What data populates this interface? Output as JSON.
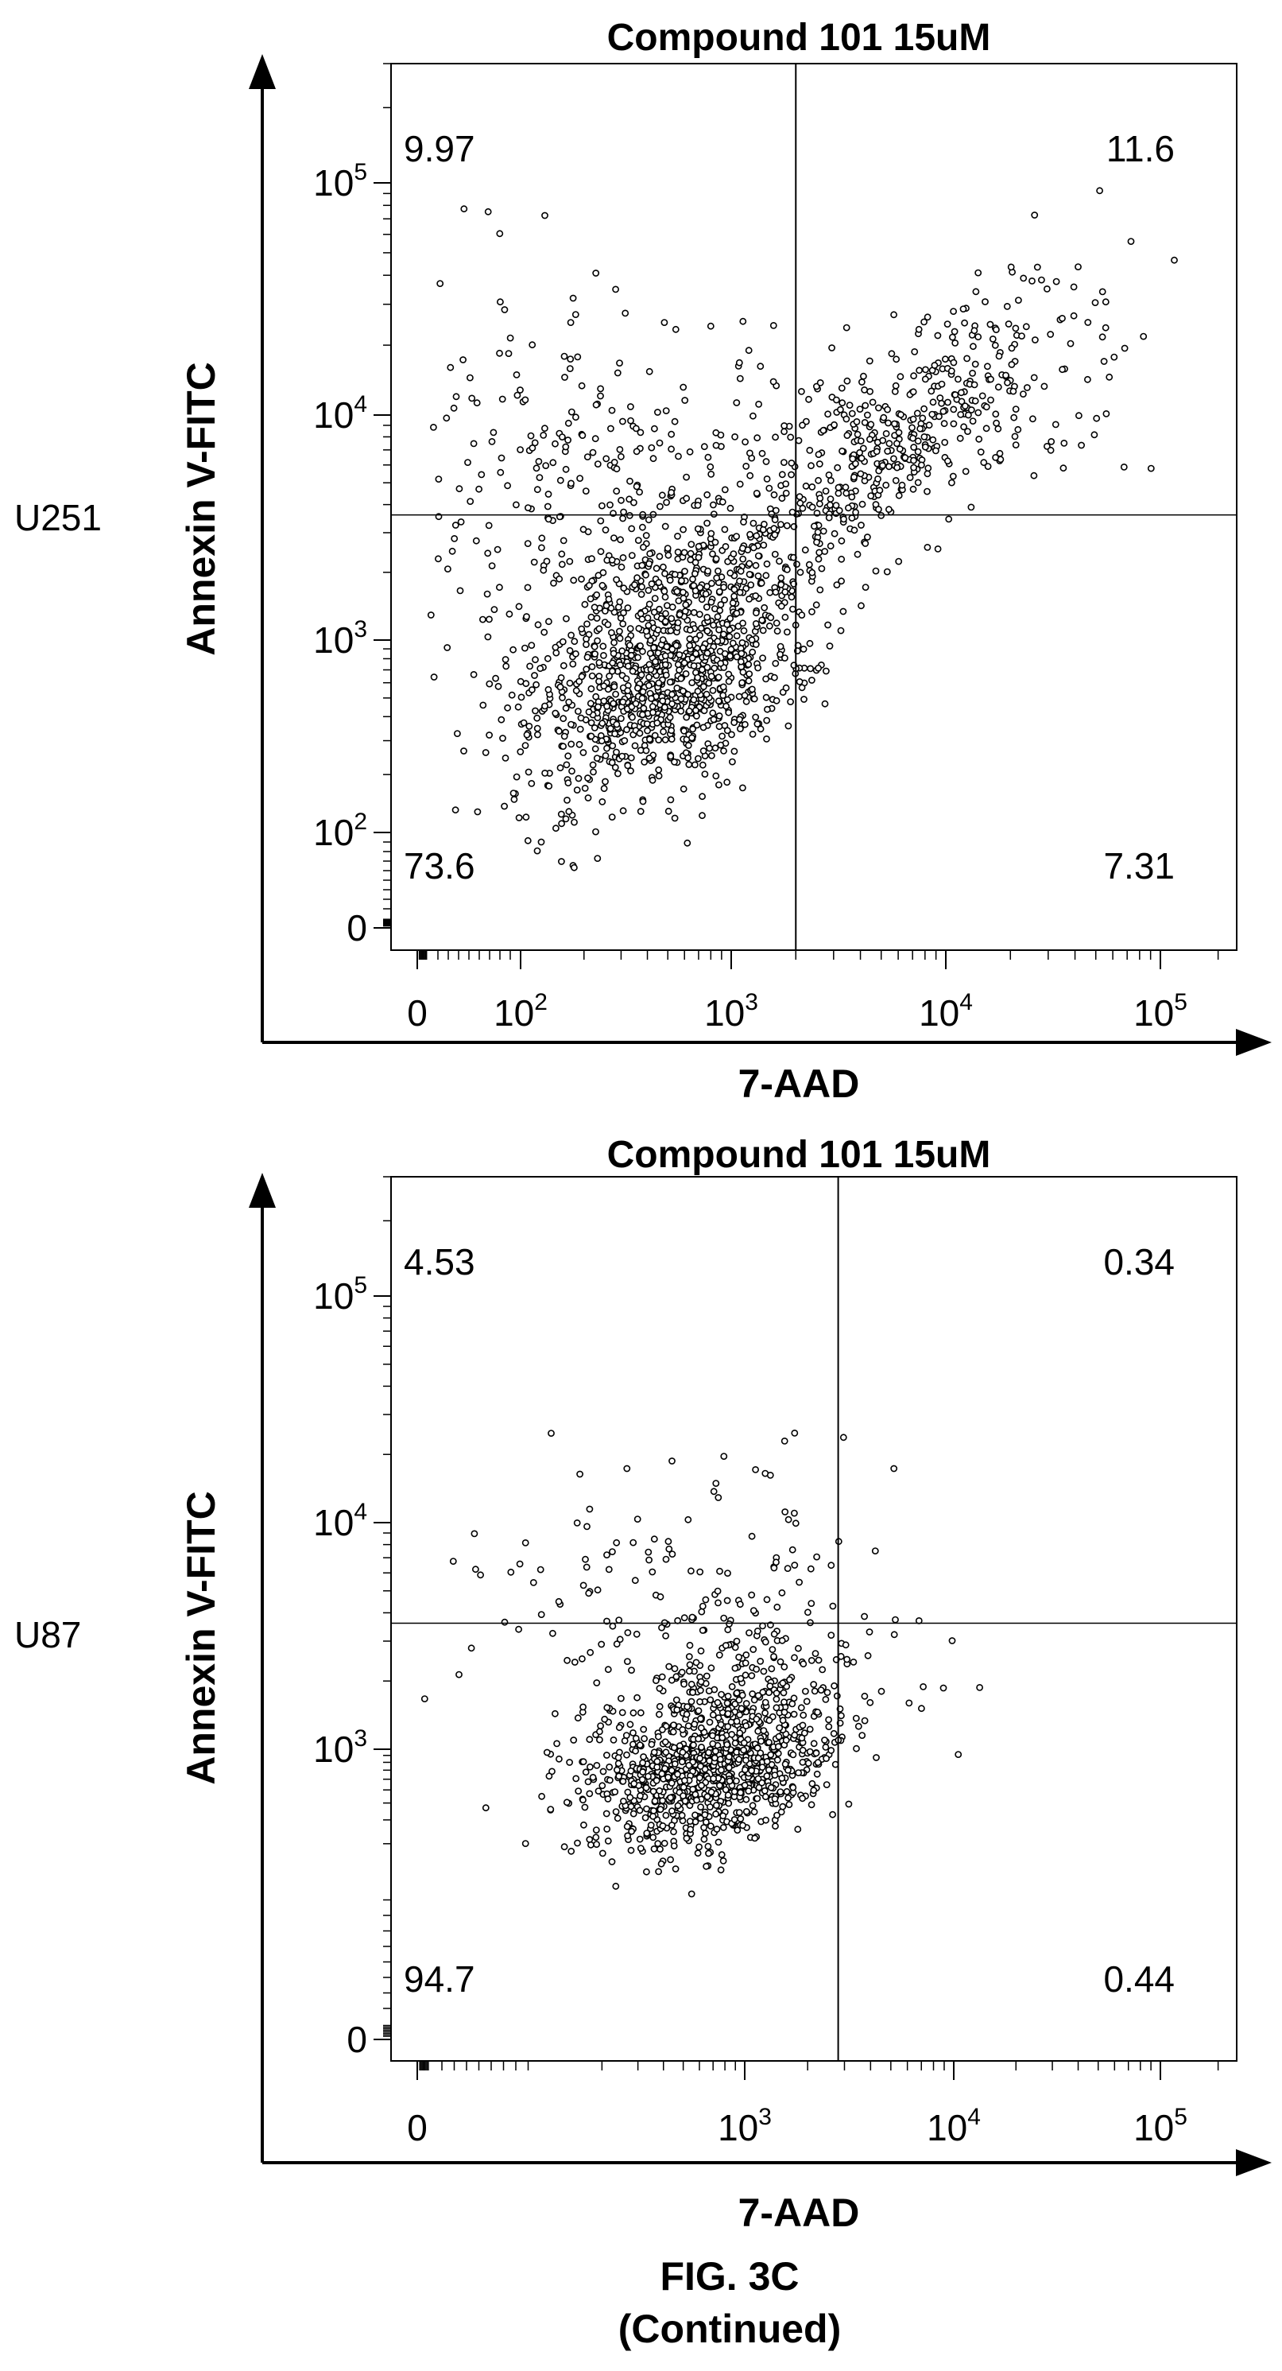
{
  "figure": {
    "caption_line1": "FIG. 3C",
    "caption_line2": "(Continued)"
  },
  "chart_data": [
    {
      "type": "scatter",
      "title": "Compound 101 15uM",
      "row_label": "U251",
      "xlabel": "7-AAD",
      "ylabel": "Annexin V-FITC",
      "x_scale": "biexponential",
      "y_scale": "biexponential",
      "x_ticks": [
        {
          "base": "0"
        },
        {
          "base": "10",
          "exp": "2"
        },
        {
          "base": "10",
          "exp": "3"
        },
        {
          "base": "10",
          "exp": "4"
        },
        {
          "base": "10",
          "exp": "5"
        }
      ],
      "y_ticks": [
        {
          "base": "0"
        },
        {
          "base": "10",
          "exp": "2"
        },
        {
          "base": "10",
          "exp": "3"
        },
        {
          "base": "10",
          "exp": "4"
        },
        {
          "base": "10",
          "exp": "5"
        }
      ],
      "gate": {
        "x": 2000,
        "y": 3600
      },
      "quadrants": {
        "top_left": "9.97",
        "top_right": "11.6",
        "bottom_left": "73.6",
        "bottom_right": "7.31"
      },
      "clusters": [
        {
          "cx": 500,
          "cy": 700,
          "sx": 0.33,
          "sy": 0.34,
          "n": 1150,
          "rho": 0.4
        },
        {
          "cx": 5000,
          "cy": 7000,
          "sx": 0.4,
          "sy": 0.32,
          "n": 500,
          "rho": 0.75
        },
        {
          "cx": 250,
          "cy": 4000,
          "sx": 0.5,
          "sy": 0.45,
          "n": 330,
          "rho": 0
        },
        {
          "cx": 40000,
          "cy": 14000,
          "sx": 0.35,
          "sy": 0.3,
          "n": 40,
          "rho": 0
        }
      ]
    },
    {
      "type": "scatter",
      "title": "Compound 101 15uM",
      "row_label": "U87",
      "xlabel": "7-AAD",
      "ylabel": "Annexin V-FITC",
      "x_scale": "biexponential",
      "y_scale": "biexponential",
      "x_ticks": [
        {
          "base": "0"
        },
        {
          "base": "10",
          "exp": "3"
        },
        {
          "base": "10",
          "exp": "4"
        },
        {
          "base": "10",
          "exp": "5"
        }
      ],
      "y_ticks": [
        {
          "base": "0"
        },
        {
          "base": "10",
          "exp": "3"
        },
        {
          "base": "10",
          "exp": "4"
        },
        {
          "base": "10",
          "exp": "5"
        }
      ],
      "gate": {
        "x": 2800,
        "y": 3600
      },
      "quadrants": {
        "top_left": "4.53",
        "top_right": "0.34",
        "bottom_left": "94.7",
        "bottom_right": "0.44"
      },
      "clusters": [
        {
          "cx": 700,
          "cy": 800,
          "sx": 0.3,
          "sy": 0.3,
          "n": 1200,
          "rho": 0.3
        },
        {
          "cx": 300,
          "cy": 5000,
          "sx": 0.5,
          "sy": 0.28,
          "n": 100,
          "rho": 0
        },
        {
          "cx": 4000,
          "cy": 2000,
          "sx": 0.35,
          "sy": 0.25,
          "n": 18,
          "rho": 0
        },
        {
          "cx": 1200,
          "cy": 15000,
          "sx": 0.3,
          "sy": 0.15,
          "n": 12,
          "rho": 0
        }
      ]
    }
  ]
}
